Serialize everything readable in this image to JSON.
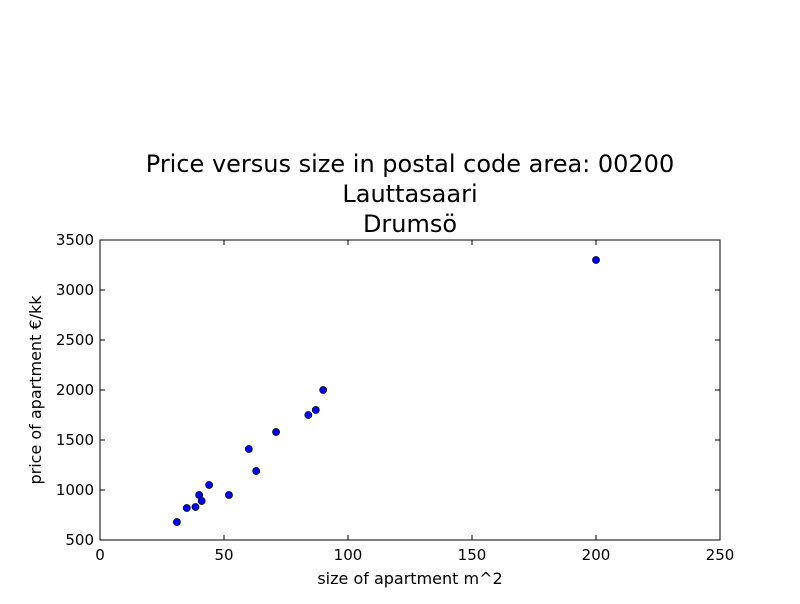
{
  "chart_data": {
    "type": "scatter",
    "title_lines": [
      "Price versus size in postal code area: 00200",
      "Lauttasaari",
      "Drumsö"
    ],
    "xlabel": "size of apartment m^2",
    "ylabel": "price of apartment €/kk",
    "xlim": [
      0,
      250
    ],
    "ylim": [
      500,
      3500
    ],
    "x_ticks": [
      0,
      50,
      100,
      150,
      200,
      250
    ],
    "y_ticks": [
      500,
      1000,
      1500,
      2000,
      2500,
      3000,
      3500
    ],
    "grid": false,
    "marker_color": "#0000ff",
    "marker_edge_color": "#000000",
    "points": [
      {
        "x": 31,
        "y": 680
      },
      {
        "x": 35,
        "y": 820
      },
      {
        "x": 38.5,
        "y": 830
      },
      {
        "x": 40,
        "y": 950
      },
      {
        "x": 41,
        "y": 890
      },
      {
        "x": 44,
        "y": 1050
      },
      {
        "x": 52,
        "y": 950
      },
      {
        "x": 60,
        "y": 1410
      },
      {
        "x": 63,
        "y": 1190
      },
      {
        "x": 71,
        "y": 1580
      },
      {
        "x": 84,
        "y": 1750
      },
      {
        "x": 87,
        "y": 1800
      },
      {
        "x": 90,
        "y": 2000
      },
      {
        "x": 200,
        "y": 3300
      }
    ]
  }
}
